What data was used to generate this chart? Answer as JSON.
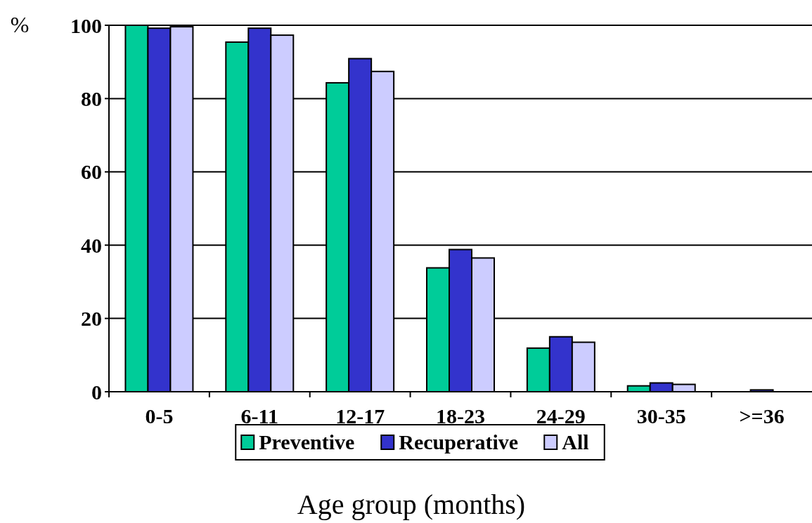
{
  "chart_data": {
    "type": "bar",
    "ylabel": "%",
    "xlabel": "Age group (months)",
    "categories": [
      "0-5",
      "6-11",
      "12-17",
      "18-23",
      "24-29",
      "30-35",
      ">=36"
    ],
    "series": [
      {
        "name": "Preventive",
        "color": "#00cc99",
        "values": [
          100,
          95.4,
          84.3,
          33.8,
          11.9,
          1.6,
          0
        ]
      },
      {
        "name": "Recuperative",
        "color": "#3333cc",
        "values": [
          99.2,
          99.2,
          90.9,
          38.8,
          15.0,
          2.4,
          0.5
        ]
      },
      {
        "name": "All",
        "color": "#ccccff",
        "values": [
          99.6,
          97.3,
          87.4,
          36.5,
          13.5,
          2.0,
          0
        ]
      }
    ],
    "ylim": [
      0,
      100
    ],
    "yticks": [
      0,
      20,
      40,
      60,
      80,
      100
    ],
    "grid": "y",
    "legend": "bottom"
  }
}
